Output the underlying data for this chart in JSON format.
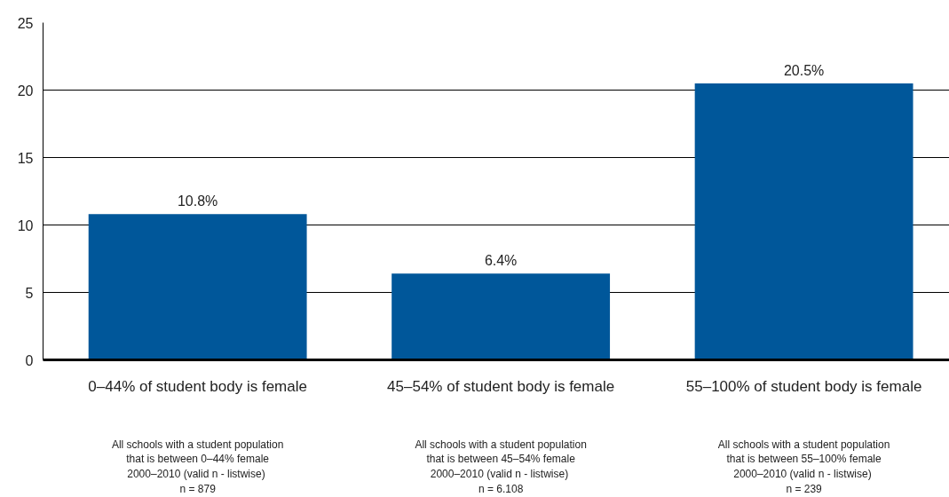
{
  "chart_data": {
    "type": "bar",
    "categories": [
      "0–44% of student body is female",
      "45–54% of student body is female",
      "55–100% of student body is female"
    ],
    "values": [
      10.8,
      6.4,
      20.5
    ],
    "value_labels": [
      "10.8%",
      "6.4%",
      "20.5%"
    ],
    "color": "#00579a",
    "ylim": [
      0,
      25
    ],
    "yticks": [
      0,
      5,
      10,
      15,
      20,
      25
    ],
    "grid": "y",
    "annotations": [
      "All schools with a student population\nthat is between 0–44% female\n2000–2010  (valid n - listwise)\nn = 879",
      "All schools with a student population\nthat is between 45–54% female\n2000–2010  (valid n - listwise)\nn = 6.108",
      "All schools with a student population\nthat is between 55–100% female\n2000–2010  (valid n - listwise)\nn = 239"
    ]
  }
}
